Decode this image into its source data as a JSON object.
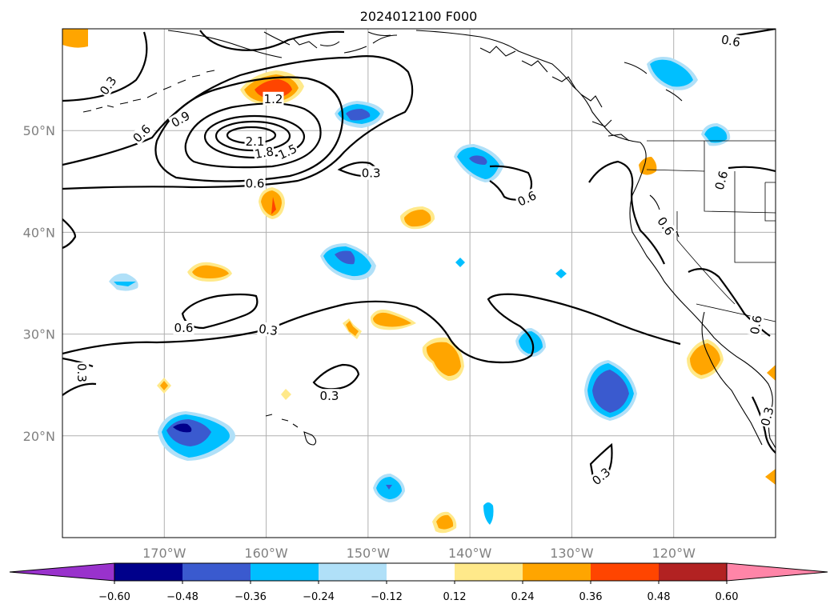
{
  "map": {
    "title": "2024012100 F000",
    "lon_range": [
      -180,
      -110
    ],
    "lat_range": [
      10,
      60
    ],
    "lon_ticks": [
      {
        "value": -170,
        "label": "170°W"
      },
      {
        "value": -160,
        "label": "160°W"
      },
      {
        "value": -150,
        "label": "150°W"
      },
      {
        "value": -140,
        "label": "140°W"
      },
      {
        "value": -130,
        "label": "130°W"
      },
      {
        "value": -120,
        "label": "120°W"
      }
    ],
    "lat_ticks": [
      {
        "value": 20,
        "label": "20°N"
      },
      {
        "value": 30,
        "label": "30°N"
      },
      {
        "value": 40,
        "label": "40°N"
      },
      {
        "value": 50,
        "label": "50°N"
      }
    ],
    "grid": true,
    "colorbar": {
      "ticks": [
        "−0.60",
        "−0.48",
        "−0.36",
        "−0.24",
        "−0.12",
        "0.12",
        "0.24",
        "0.36",
        "0.48",
        "0.60"
      ],
      "colors": [
        "#9932cc",
        "#00008b",
        "#3a5acf",
        "#00bfff",
        "#b0e0f8",
        "#ffffff",
        "#ffe98a",
        "#ffa500",
        "#ff4500",
        "#b22222",
        "#ff85a8"
      ],
      "extend": "both"
    },
    "contour_labels": [
      {
        "text": "0.3",
        "lon": -175.5,
        "lat": 54.4,
        "angle": -55
      },
      {
        "text": "0.6",
        "lon": -172.2,
        "lat": 49.7,
        "angle": -45
      },
      {
        "text": "0.9",
        "lon": -168.4,
        "lat": 51.1,
        "angle": -30
      },
      {
        "text": "1.2",
        "lon": -159.3,
        "lat": 53.1,
        "angle": 0
      },
      {
        "text": "2.1",
        "lon": -161.1,
        "lat": 48.9,
        "angle": 0
      },
      {
        "text": "1.8",
        "lon": -160.2,
        "lat": 47.8,
        "angle": -10
      },
      {
        "text": "1.5",
        "lon": -157.9,
        "lat": 47.9,
        "angle": -25
      },
      {
        "text": "0.6",
        "lon": -161.1,
        "lat": 44.8,
        "angle": 0
      },
      {
        "text": "0.3",
        "lon": -149.7,
        "lat": 45.8,
        "angle": 0
      },
      {
        "text": "0.6",
        "lon": -134.4,
        "lat": 43.3,
        "angle": -25
      },
      {
        "text": "0.6",
        "lon": -120.8,
        "lat": 40.6,
        "angle": 55
      },
      {
        "text": "0.6",
        "lon": -114.4,
        "lat": 58.8,
        "angle": 10
      },
      {
        "text": "0.6",
        "lon": -115.3,
        "lat": 45.1,
        "angle": -75
      },
      {
        "text": "0.6",
        "lon": -111.9,
        "lat": 30.9,
        "angle": -80
      },
      {
        "text": "0.6",
        "lon": -168.1,
        "lat": 30.6,
        "angle": 0
      },
      {
        "text": "0.3",
        "lon": -159.8,
        "lat": 30.4,
        "angle": 8
      },
      {
        "text": "0.3",
        "lon": -178.1,
        "lat": 26.2,
        "angle": 90
      },
      {
        "text": "0.3",
        "lon": -153.8,
        "lat": 23.9,
        "angle": 0
      },
      {
        "text": "0.3",
        "lon": -127.1,
        "lat": 16.0,
        "angle": -40
      },
      {
        "text": "0.3",
        "lon": -110.8,
        "lat": 21.9,
        "angle": -75
      }
    ]
  }
}
